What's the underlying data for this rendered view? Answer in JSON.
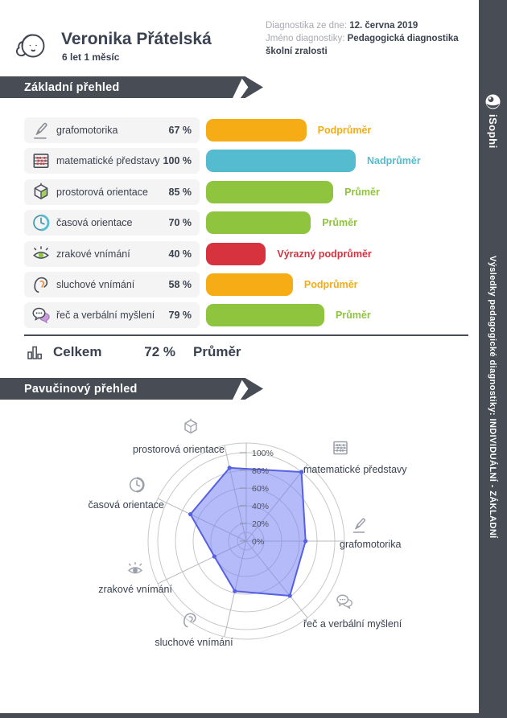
{
  "header": {
    "student_name": "Veronika Přátelská",
    "student_age": "6 let 1 měsíc",
    "date_label": "Diagnostika ze dne: ",
    "date_value": "12. června 2019",
    "diag_label": "Jméno diagnostiky: ",
    "diag_value": "Pedagogická diagnostika školní zralosti"
  },
  "brand": {
    "name": "iSophi"
  },
  "sidebar": {
    "vertical_text": "Výsledky pedagogické diagnostiky: INDIVIDUÁLNÍ - ZÁKLADNÍ"
  },
  "sections": {
    "basic": "Základní přehled",
    "web": "Pavučinový přehled"
  },
  "rows": [
    {
      "icon": "pencil-icon",
      "label": "grafomotorika",
      "percent": 67,
      "percent_label": "67 %",
      "status": "Podprůměr",
      "color": "#F5AC15"
    },
    {
      "icon": "abacus-icon",
      "label": "matematické představy",
      "percent": 100,
      "percent_label": "100 %",
      "status": "Nadprůměr",
      "color": "#54BCCE"
    },
    {
      "icon": "cube-icon",
      "label": "prostorová orientace",
      "percent": 85,
      "percent_label": "85 %",
      "status": "Průměr",
      "color": "#8FC43E"
    },
    {
      "icon": "clock-icon",
      "label": "časová orientace",
      "percent": 70,
      "percent_label": "70 %",
      "status": "Průměr",
      "color": "#8FC43E"
    },
    {
      "icon": "eye-icon",
      "label": "zrakové vnímání",
      "percent": 40,
      "percent_label": "40 %",
      "status": "Výrazný podprůměr",
      "color": "#D6333F"
    },
    {
      "icon": "ear-icon",
      "label": "sluchové vnímání",
      "percent": 58,
      "percent_label": "58 %",
      "status": "Podprůměr",
      "color": "#F5AC15"
    },
    {
      "icon": "speech-icon",
      "label": "řeč a verbální myšlení",
      "percent": 79,
      "percent_label": "79 %",
      "status": "Průměr",
      "color": "#8FC43E"
    }
  ],
  "total": {
    "icon": "barchart-icon",
    "label": "Celkem",
    "percent_label": "72 %",
    "status": "Průměr"
  },
  "chart_data": {
    "type": "radar",
    "categories": [
      "grafomotorika",
      "matematické představy",
      "prostorová orientace",
      "časová orientace",
      "zrakové vnímání",
      "sluchové vnímání",
      "řeč a verbální myšlení"
    ],
    "values": [
      67,
      100,
      85,
      70,
      40,
      58,
      79
    ],
    "axis_max": 100,
    "ring_step_percent": 20,
    "tick_labels": [
      "0%",
      "20%",
      "40%",
      "60%",
      "80%",
      "100%"
    ],
    "grid": true,
    "legend": false,
    "fill_color": "rgba(120,131,243,0.55)",
    "stroke_color": "#5560E2"
  }
}
